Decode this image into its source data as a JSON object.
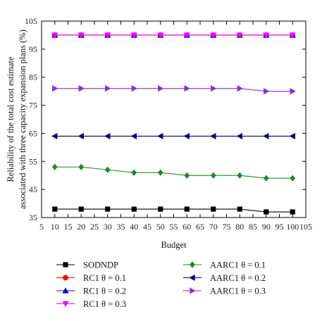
{
  "chart_data": {
    "type": "line",
    "xlabel": "Budget",
    "ylabel_lines": [
      "Reliability of the total cost estimate",
      "associated with three capacity expansion plans (%)"
    ],
    "xlim": [
      5,
      105
    ],
    "ylim": [
      35,
      105
    ],
    "xticks": [
      5,
      10,
      15,
      20,
      25,
      30,
      35,
      40,
      45,
      50,
      55,
      60,
      65,
      70,
      75,
      80,
      85,
      90,
      95,
      100,
      105
    ],
    "yticks": [
      35,
      45,
      55,
      65,
      75,
      85,
      95,
      105
    ],
    "x": [
      10,
      20,
      30,
      40,
      50,
      60,
      70,
      80,
      90,
      100
    ],
    "legend_position": "below",
    "series": [
      {
        "name": "SODNDP",
        "symbol": "square",
        "color": "#000000",
        "values": [
          38,
          38,
          38,
          38,
          38,
          38,
          38,
          38,
          37,
          37
        ]
      },
      {
        "name": "RC1 θ = 0.1",
        "symbol": "circle",
        "color": "#ff0000",
        "values": [
          100,
          100,
          100,
          100,
          100,
          100,
          100,
          100,
          100,
          100
        ]
      },
      {
        "name": "RC1 θ = 0.2",
        "symbol": "triangle-up",
        "color": "#0000ff",
        "values": [
          100,
          100,
          100,
          100,
          100,
          100,
          100,
          100,
          100,
          100
        ]
      },
      {
        "name": "RC1 θ = 0.3",
        "symbol": "triangle-down",
        "color": "#ff00ff",
        "values": [
          100,
          100,
          100,
          100,
          100,
          100,
          100,
          100,
          100,
          100
        ]
      },
      {
        "name": "AARC1 θ = 0.1",
        "symbol": "diamond",
        "color": "#1a8a2a",
        "values": [
          53,
          53,
          52,
          51,
          51,
          50,
          50,
          50,
          49,
          49
        ]
      },
      {
        "name": "AARC1 θ = 0.2",
        "symbol": "triangle-left",
        "color": "#000080",
        "values": [
          64,
          64,
          64,
          64,
          64,
          64,
          64,
          64,
          64,
          64
        ]
      },
      {
        "name": "AARC1 θ = 0.3",
        "symbol": "triangle-right",
        "color": "#8a2be2",
        "values": [
          81,
          81,
          81,
          81,
          81,
          81,
          81,
          81,
          80,
          80
        ]
      }
    ]
  }
}
